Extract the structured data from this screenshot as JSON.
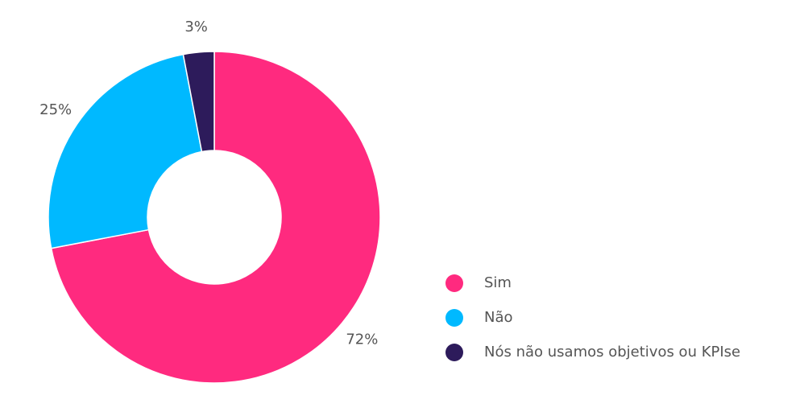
{
  "chart_data": {
    "type": "pie",
    "categories": [
      "Sim",
      "Não",
      "Nós não usamos objetivos ou KPIse"
    ],
    "values": [
      72,
      25,
      3
    ],
    "value_labels": [
      "72%",
      "25%",
      "3%"
    ],
    "colors": [
      "#ff2a7f",
      "#00b9ff",
      "#2d1b5b"
    ],
    "donut": true,
    "legend_position": "right"
  }
}
